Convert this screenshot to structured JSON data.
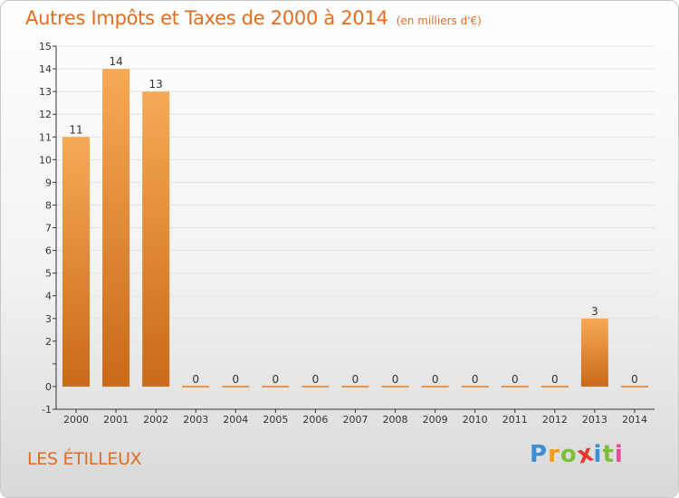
{
  "title": "Autres Impôts et Taxes de 2000 à 2014",
  "title_unit": "(en milliers d'€)",
  "location": "LES ÉTILLEUX",
  "logo": {
    "letters": [
      "P",
      "r",
      "o",
      "x",
      "i",
      "t",
      "i"
    ],
    "colors": [
      "#3b8ed8",
      "#f29b1c",
      "#7bbf3a",
      "#e8392c",
      "#3b8ed8",
      "#7bbf3a",
      "#e84b96"
    ]
  },
  "colors": {
    "bar_light": "#f7a955",
    "bar_dark": "#c96a18",
    "zero_line": "#e8934a",
    "axis": "#333333",
    "grid": "#e4e4e4",
    "text": "#333333"
  },
  "chart_data": {
    "type": "bar",
    "categories": [
      "2000",
      "2001",
      "2002",
      "2003",
      "2004",
      "2005",
      "2006",
      "2007",
      "2008",
      "2009",
      "2010",
      "2011",
      "2012",
      "2013",
      "2014"
    ],
    "values": [
      11,
      14,
      13,
      0,
      0,
      0,
      0,
      0,
      0,
      0,
      0,
      0,
      0,
      3,
      0
    ],
    "value_labels": [
      "11",
      "14",
      "13",
      "0",
      "0",
      "0",
      "0",
      "0",
      "0",
      "0",
      "0",
      "0",
      "0",
      "3",
      "0"
    ],
    "y_ticks": [
      "-1",
      "0",
      "",
      "2",
      "3",
      "4",
      "5",
      "6",
      "7",
      "8",
      "9",
      "10",
      "11",
      "12",
      "13",
      "14",
      "15"
    ],
    "ylim": [
      -1,
      15
    ],
    "grid": true
  }
}
